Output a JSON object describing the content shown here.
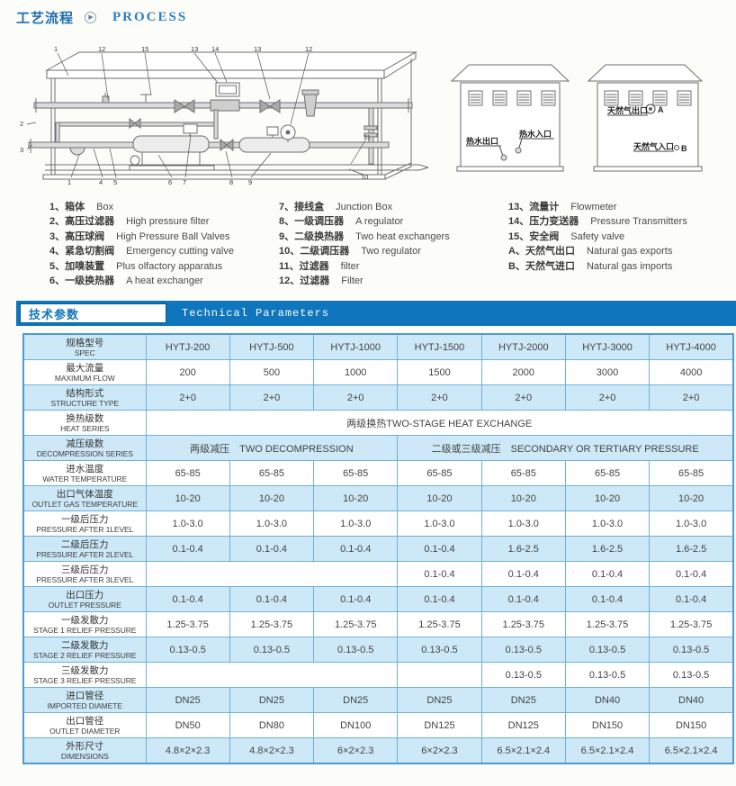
{
  "page": {
    "title_cn": "工艺流程",
    "title_en": "PROCESS"
  },
  "colors": {
    "accent": "#0f76bd",
    "row_shade": "#cde8f6",
    "table_border": "#6fb0dc"
  },
  "diagram": {
    "skid_callouts_top": [
      "1",
      "12",
      "15",
      "13",
      "14",
      "13",
      "12"
    ],
    "skid_callouts_bottom": [
      "1",
      "4",
      "5",
      "6",
      "7",
      "8",
      "9"
    ],
    "skid_callouts_left": [
      "2",
      "3"
    ],
    "skid_callouts_right": [
      "11",
      "10"
    ],
    "cabinet_hot_water": {
      "outlet_label": "热水出口",
      "inlet_label": "热水入口"
    },
    "cabinet_gas": {
      "outlet_label": "天然气出口",
      "outlet_marker": "A",
      "inlet_label": "天然气入口",
      "inlet_marker": "B"
    }
  },
  "legend": {
    "columns": [
      [
        {
          "no": "1",
          "cn": "箱体",
          "en": "Box"
        },
        {
          "no": "2",
          "cn": "高压过滤器",
          "en": "High pressure filter"
        },
        {
          "no": "3",
          "cn": "高压球阀",
          "en": "High Pressure Ball Valves"
        },
        {
          "no": "4",
          "cn": "紧急切割阀",
          "en": "Emergency cutting valve"
        },
        {
          "no": "5",
          "cn": "加嗅装置",
          "en": "Plus olfactory apparatus"
        },
        {
          "no": "6",
          "cn": "一级换热器",
          "en": "A heat exchanger"
        }
      ],
      [
        {
          "no": "7",
          "cn": "接线盒",
          "en": "Junction Box"
        },
        {
          "no": "8",
          "cn": "一级调压器",
          "en": "A regulator"
        },
        {
          "no": "9",
          "cn": "二级换热器",
          "en": "Two heat exchangers"
        },
        {
          "no": "10",
          "cn": "二级调压器",
          "en": "Two regulator"
        },
        {
          "no": "11",
          "cn": "过滤器",
          "en": "filter"
        },
        {
          "no": "12",
          "cn": "过滤器",
          "en": "Filter"
        }
      ],
      [
        {
          "no": "13",
          "cn": "流量计",
          "en": "Flowmeter"
        },
        {
          "no": "14",
          "cn": "压力变送器",
          "en": "Pressure Transmitters"
        },
        {
          "no": "15",
          "cn": "安全阀",
          "en": "Safety valve"
        },
        {
          "no": "A",
          "cn": "天然气出口",
          "en": "Natural gas exports"
        },
        {
          "no": "B",
          "cn": "天然气进口",
          "en": "Natural gas imports"
        }
      ]
    ]
  },
  "section": {
    "title_cn": "技术参数",
    "title_en": "Technical Parameters"
  },
  "table": {
    "rows": [
      {
        "cn": "规格型号",
        "en": "SPEC",
        "cells": [
          {
            "t": "HYTJ-200"
          },
          {
            "t": "HYTJ-500"
          },
          {
            "t": "HYTJ-1000"
          },
          {
            "t": "HYTJ-1500"
          },
          {
            "t": "HYTJ-2000"
          },
          {
            "t": "HYTJ-3000"
          },
          {
            "t": "HYTJ-4000"
          }
        ]
      },
      {
        "cn": "最大流量",
        "en": "MAXIMUM FLOW",
        "cells": [
          {
            "t": "200"
          },
          {
            "t": "500"
          },
          {
            "t": "1000"
          },
          {
            "t": "1500"
          },
          {
            "t": "2000"
          },
          {
            "t": "3000"
          },
          {
            "t": "4000"
          }
        ]
      },
      {
        "cn": "结构形式",
        "en": "STRUCTURE TYPE",
        "cells": [
          {
            "t": "2+0"
          },
          {
            "t": "2+0"
          },
          {
            "t": "2+0"
          },
          {
            "t": "2+0"
          },
          {
            "t": "2+0"
          },
          {
            "t": "2+0"
          },
          {
            "t": "2+0"
          }
        ]
      },
      {
        "cn": "换热级数",
        "en": "HEAT SERIES",
        "cells": [
          {
            "t": "两级换热TWO-STAGE HEAT EXCHANGE",
            "span": 7
          }
        ]
      },
      {
        "cn": "减压级数",
        "en": "DECOMPRESSION SERIES",
        "cells": [
          {
            "t": "两级减压　TWO DECOMPRESSION",
            "span": 3
          },
          {
            "t": "二级或三级减压　SECONDARY OR TERTIARY PRESSURE",
            "span": 4
          }
        ]
      },
      {
        "cn": "进水温度",
        "en": "WATER TEMPERATURE",
        "cells": [
          {
            "t": "65-85"
          },
          {
            "t": "65-85"
          },
          {
            "t": "65-85"
          },
          {
            "t": "65-85"
          },
          {
            "t": "65-85"
          },
          {
            "t": "65-85"
          },
          {
            "t": "65-85"
          }
        ]
      },
      {
        "cn": "出口气体温度",
        "en": "OUTLET GAS TEMPERATURE",
        "cells": [
          {
            "t": "10-20"
          },
          {
            "t": "10-20"
          },
          {
            "t": "10-20"
          },
          {
            "t": "10-20"
          },
          {
            "t": "10-20"
          },
          {
            "t": "10-20"
          },
          {
            "t": "10-20"
          }
        ]
      },
      {
        "cn": "一级后压力",
        "en": "PRESSURE AFTER 1LEVEL",
        "cells": [
          {
            "t": "1.0-3.0"
          },
          {
            "t": "1.0-3.0"
          },
          {
            "t": "1.0-3.0"
          },
          {
            "t": "1.0-3.0"
          },
          {
            "t": "1.0-3.0"
          },
          {
            "t": "1.0-3.0"
          },
          {
            "t": "1.0-3.0"
          }
        ]
      },
      {
        "cn": "二级后压力",
        "en": "PRESSURE AFTER 2LEVEL",
        "cells": [
          {
            "t": "0.1-0.4"
          },
          {
            "t": "0.1-0.4"
          },
          {
            "t": "0.1-0.4"
          },
          {
            "t": "0.1-0.4"
          },
          {
            "t": "1.6-2.5"
          },
          {
            "t": "1.6-2.5"
          },
          {
            "t": "1.6-2.5"
          }
        ]
      },
      {
        "cn": "三级后压力",
        "en": "PRESSURE AFTER 3LEVEL",
        "cells": [
          {
            "t": "",
            "span": 3
          },
          {
            "t": "0.1-0.4"
          },
          {
            "t": "0.1-0.4"
          },
          {
            "t": "0.1-0.4"
          },
          {
            "t": "0.1-0.4"
          }
        ]
      },
      {
        "cn": "出口压力",
        "en": "OUTLET PRESSURE",
        "cells": [
          {
            "t": "0.1-0.4"
          },
          {
            "t": "0.1-0.4"
          },
          {
            "t": "0.1-0.4"
          },
          {
            "t": "0.1-0.4"
          },
          {
            "t": "0.1-0.4"
          },
          {
            "t": "0.1-0.4"
          },
          {
            "t": "0.1-0.4"
          }
        ]
      },
      {
        "cn": "一级发散力",
        "en": "STAGE 1 RELIEF PRESSURE",
        "cells": [
          {
            "t": "1.25-3.75"
          },
          {
            "t": "1.25-3.75"
          },
          {
            "t": "1.25-3.75"
          },
          {
            "t": "1.25-3.75"
          },
          {
            "t": "1.25-3.75"
          },
          {
            "t": "1.25-3.75"
          },
          {
            "t": "1.25-3.75"
          }
        ]
      },
      {
        "cn": "二级发散力",
        "en": "STAGE 2 RELIEF PRESSURE",
        "cells": [
          {
            "t": "0.13-0.5"
          },
          {
            "t": "0.13-0.5"
          },
          {
            "t": "0.13-0.5"
          },
          {
            "t": "0.13-0.5"
          },
          {
            "t": "0.13-0.5"
          },
          {
            "t": "0.13-0.5"
          },
          {
            "t": "0.13-0.5"
          }
        ]
      },
      {
        "cn": "三级发散力",
        "en": "STAGE 3 RELIEF PRESSURE",
        "cells": [
          {
            "t": "",
            "span": 3
          },
          {
            "t": ""
          },
          {
            "t": "0.13-0.5"
          },
          {
            "t": "0.13-0.5"
          },
          {
            "t": "0.13-0.5"
          }
        ]
      },
      {
        "cn": "进口管径",
        "en": "IMPORTED DIAMETE",
        "cells": [
          {
            "t": "DN25"
          },
          {
            "t": "DN25"
          },
          {
            "t": "DN25"
          },
          {
            "t": "DN25"
          },
          {
            "t": "DN25"
          },
          {
            "t": "DN40"
          },
          {
            "t": "DN40"
          }
        ]
      },
      {
        "cn": "出口管径",
        "en": "OUTLET DIAMETER",
        "cells": [
          {
            "t": "DN50"
          },
          {
            "t": "DN80"
          },
          {
            "t": "DN100"
          },
          {
            "t": "DN125"
          },
          {
            "t": "DN125"
          },
          {
            "t": "DN150"
          },
          {
            "t": "DN150"
          }
        ]
      },
      {
        "cn": "外形尺寸",
        "en": "DIMENSIONS",
        "cells": [
          {
            "t": "4.8×2×2.3"
          },
          {
            "t": "4.8×2×2.3"
          },
          {
            "t": "6×2×2.3"
          },
          {
            "t": "6×2×2.3"
          },
          {
            "t": "6.5×2.1×2.4"
          },
          {
            "t": "6.5×2.1×2.4"
          },
          {
            "t": "6.5×2.1×2.4"
          }
        ]
      }
    ]
  }
}
